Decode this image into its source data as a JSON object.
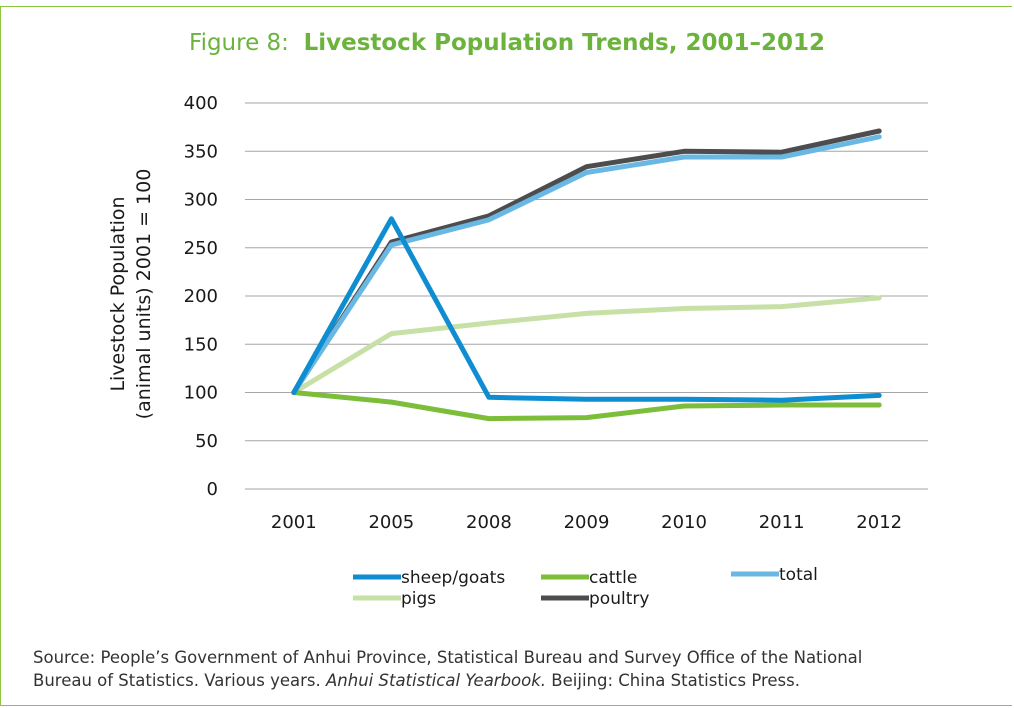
{
  "figure": {
    "label": "Figure 8:",
    "title": "Livestock Population Trends, 2001–2012"
  },
  "source": {
    "line1": "Source: People’s Government of Anhui Province, Statistical Bureau and Survey Office of the National",
    "line2_pre": "Bureau of Statistics. Various years. ",
    "line2_italic": "Anhui Statistical Yearbook.",
    "line2_post": " Beijing: China Statistics Press."
  },
  "colors": {
    "frame": "#8cc63f",
    "title": "#6cb33e",
    "sheep_goats": "#0f8dd1",
    "cattle": "#7cbd3a",
    "total": "#69b8e3",
    "pigs": "#c7e0a6",
    "poultry": "#4d4d4f",
    "grid": "#a6a6a6"
  },
  "chart_data": {
    "type": "line",
    "title": "Livestock Population Trends, 2001–2012",
    "xlabel": "",
    "ylabel_line1": "Livestock Population",
    "ylabel_line2": "(animal units) 2001 = 100",
    "categories": [
      "2001",
      "2005",
      "2008",
      "2009",
      "2010",
      "2011",
      "2012"
    ],
    "ylim": [
      0,
      400
    ],
    "yticks": [
      0,
      50,
      100,
      150,
      200,
      250,
      300,
      350,
      400
    ],
    "grid": true,
    "legend_position": "bottom",
    "series": [
      {
        "name": "sheep/goats",
        "color": "#0f8dd1",
        "values": [
          100,
          280,
          95,
          93,
          93,
          92,
          97
        ]
      },
      {
        "name": "cattle",
        "color": "#7cbd3a",
        "values": [
          100,
          90,
          73,
          74,
          86,
          87,
          87
        ]
      },
      {
        "name": "total",
        "color": "#69b8e3",
        "values": [
          100,
          253,
          279,
          328,
          344,
          344,
          365
        ]
      },
      {
        "name": "pigs",
        "color": "#c7e0a6",
        "values": [
          100,
          161,
          172,
          182,
          187,
          189,
          198
        ]
      },
      {
        "name": "poultry",
        "color": "#4d4d4f",
        "values": [
          100,
          256,
          283,
          334,
          350,
          349,
          371
        ]
      }
    ]
  }
}
